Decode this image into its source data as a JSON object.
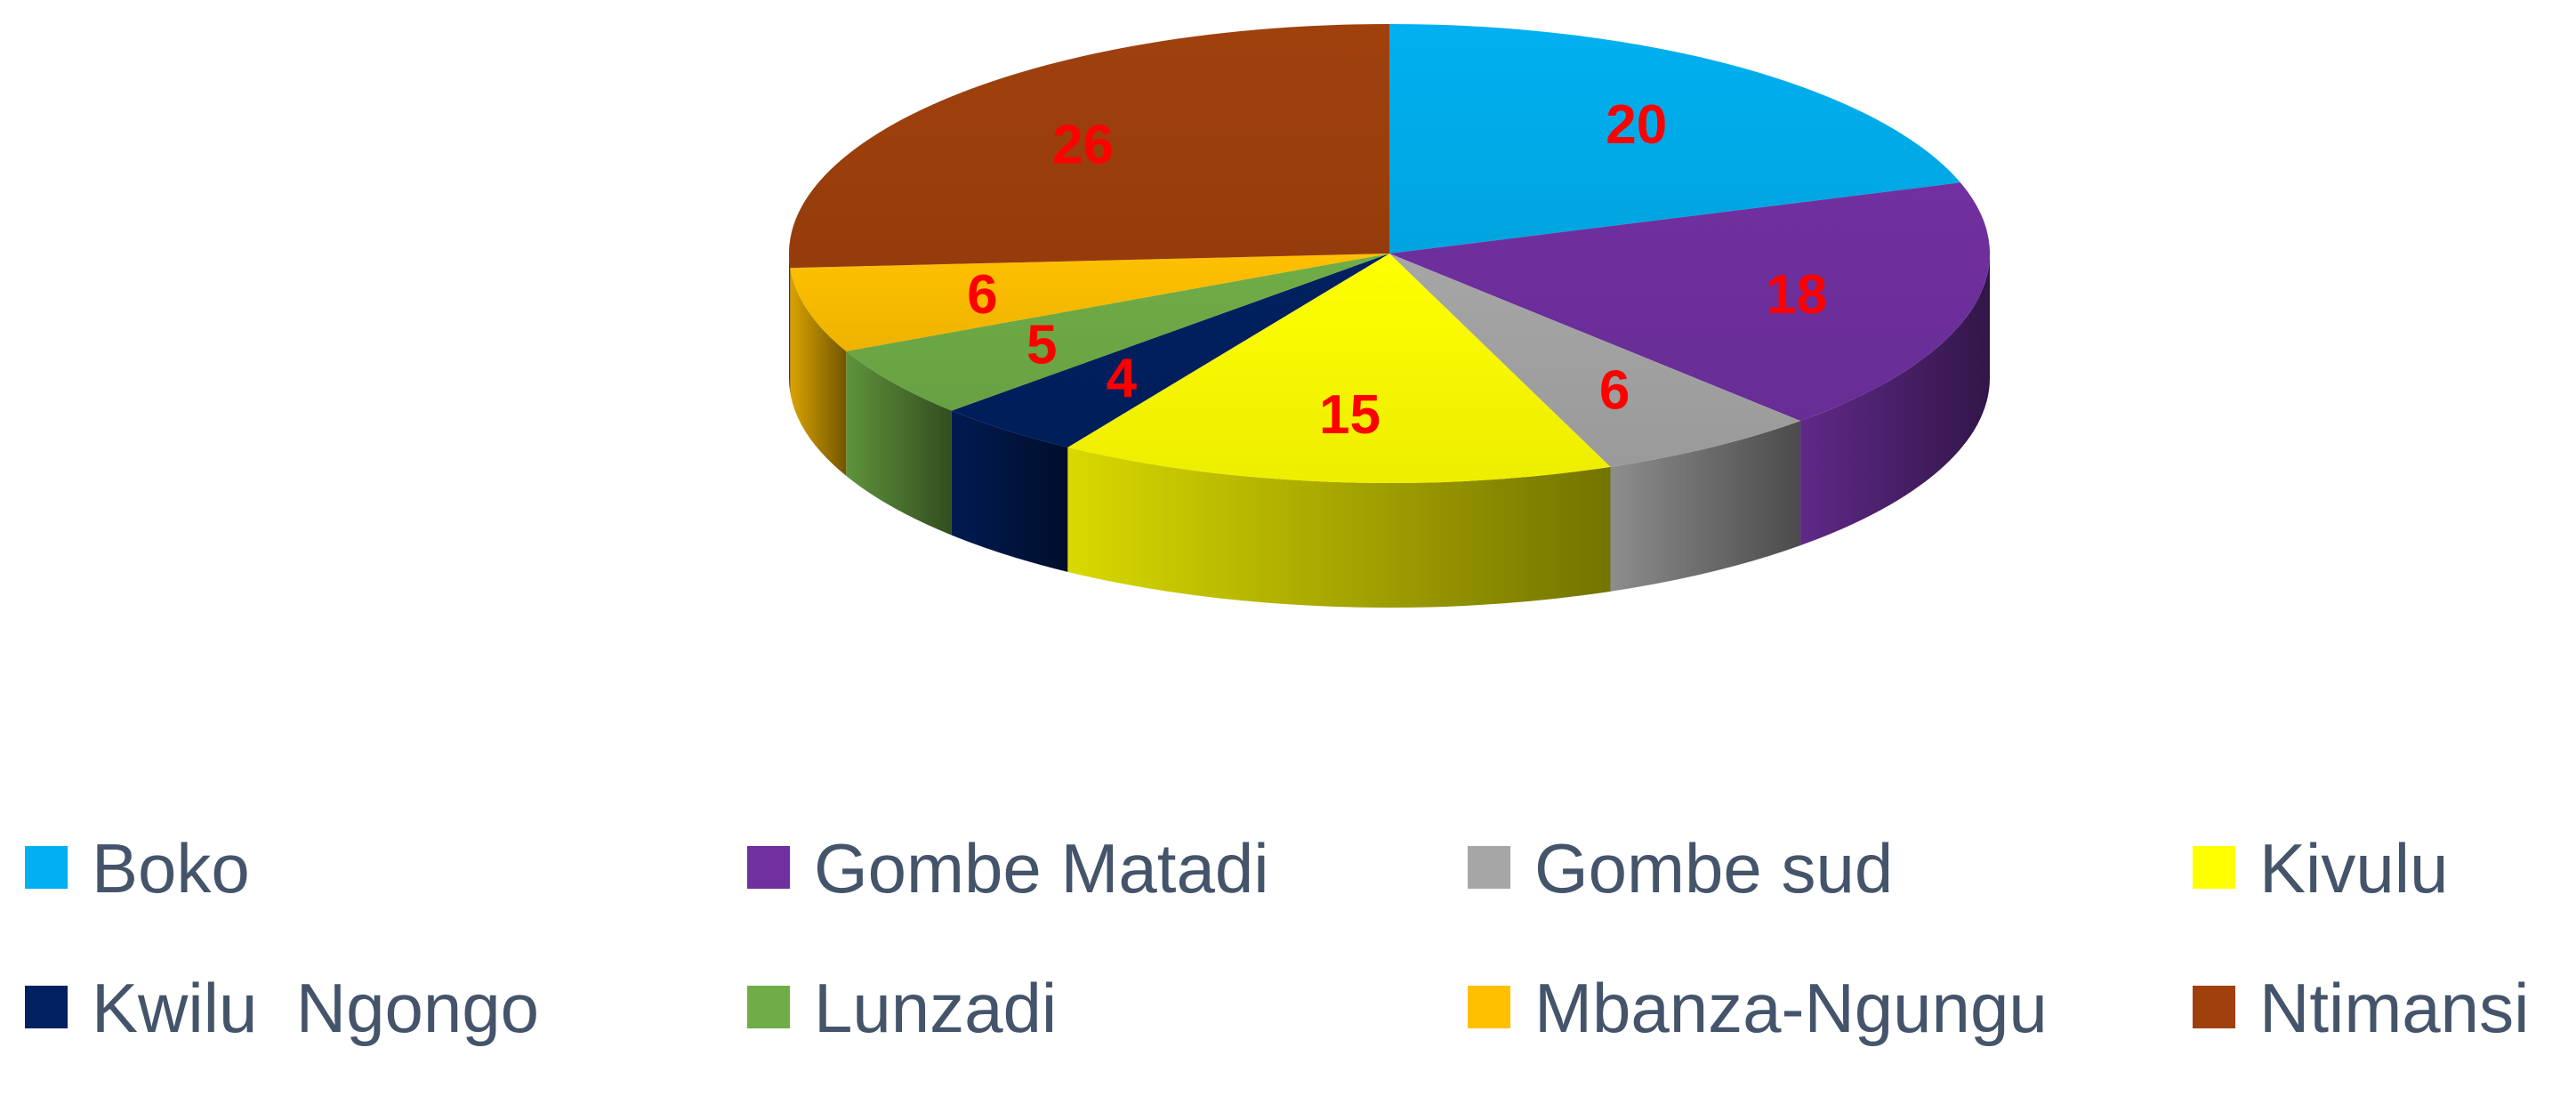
{
  "chart_data": {
    "type": "pie",
    "style": "3d",
    "title": "",
    "legend_placement": "bottom",
    "slices": [
      {
        "label": "Boko",
        "value": 20,
        "color": "#00b0f0"
      },
      {
        "label": "Gombe Matadi",
        "value": 18,
        "color": "#7030a0"
      },
      {
        "label": "Gombe sud",
        "value": 6,
        "color": "#a6a6a6"
      },
      {
        "label": "Kivulu",
        "value": 15,
        "color": "#ffff00"
      },
      {
        "label": "Kwilu  Ngongo",
        "value": 4,
        "color": "#002060"
      },
      {
        "label": "Lunzadi",
        "value": 5,
        "color": "#70ad47"
      },
      {
        "label": "Mbanza-Ngungu",
        "value": 6,
        "color": "#ffc000"
      },
      {
        "label": "Ntimansi",
        "value": 26,
        "color": "#a0410d"
      }
    ]
  }
}
